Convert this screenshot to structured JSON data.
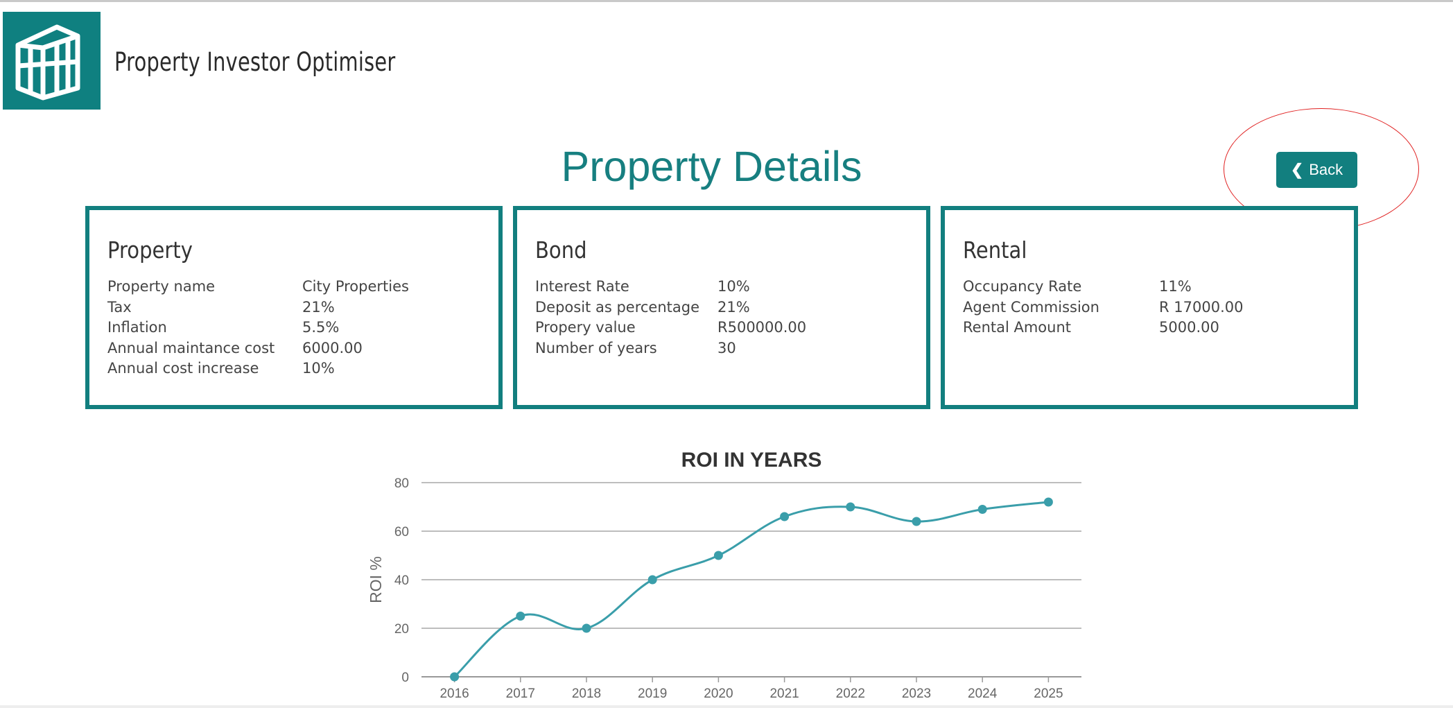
{
  "app": {
    "title": "Property Investor Optimiser"
  },
  "page": {
    "title": "Property Details"
  },
  "toolbar": {
    "back_label": "Back",
    "back_icon": "chevron-left-icon"
  },
  "annotation": {
    "number": "1",
    "color": "#e02020"
  },
  "colors": {
    "accent": "#127f7f",
    "title": "#177f80",
    "line": "#3a9eaa"
  },
  "cards": {
    "property": {
      "title": "Property",
      "rows": [
        {
          "label": "Property name",
          "value": "City Properties"
        },
        {
          "label": "Tax",
          "value": "21%"
        },
        {
          "label": "Inflation",
          "value": "5.5%"
        },
        {
          "label": "Annual maintance cost",
          "value": "6000.00"
        },
        {
          "label": "Annual cost increase",
          "value": "10%"
        }
      ]
    },
    "bond": {
      "title": "Bond",
      "rows": [
        {
          "label": "Interest Rate",
          "value": "10%"
        },
        {
          "label": "Deposit as percentage",
          "value": "21%"
        },
        {
          "label": "Propery value",
          "value": "R500000.00"
        },
        {
          "label": "Number of years",
          "value": "30"
        }
      ]
    },
    "rental": {
      "title": "Rental",
      "rows": [
        {
          "label": "Occupancy Rate",
          "value": "11%"
        },
        {
          "label": "Agent Commission",
          "value": "R 17000.00"
        },
        {
          "label": "Rental Amount",
          "value": "5000.00"
        }
      ]
    }
  },
  "chart_data": {
    "type": "line",
    "title": "ROI IN YEARS",
    "xlabel": "",
    "ylabel": "ROI %",
    "x": [
      "2016",
      "2017",
      "2018",
      "2019",
      "2020",
      "2021",
      "2022",
      "2023",
      "2024",
      "2025"
    ],
    "series": [
      {
        "values": [
          0,
          25,
          20,
          40,
          50,
          66,
          70,
          64,
          69,
          72
        ]
      }
    ],
    "ylim": [
      0,
      80
    ],
    "yticks": [
      0,
      20,
      40,
      60,
      80
    ],
    "grid": true,
    "smooth": true
  }
}
